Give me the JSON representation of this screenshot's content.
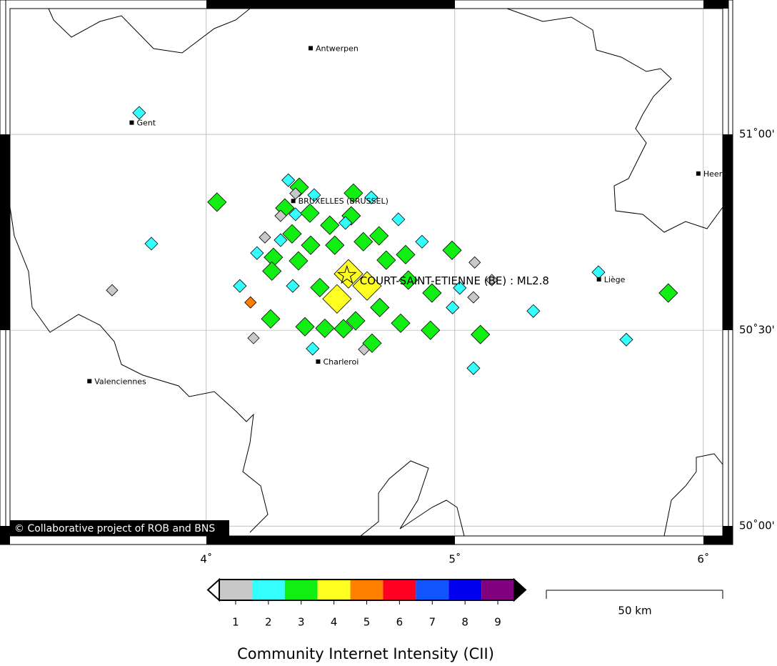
{
  "map": {
    "xlim": [
      3.193,
      6.101
    ],
    "ylim": [
      49.953,
      51.343
    ],
    "xticks": [
      {
        "value": 4,
        "label": "4˚"
      },
      {
        "value": 5,
        "label": "5˚"
      },
      {
        "value": 6,
        "label": "6˚"
      }
    ],
    "yticks": [
      {
        "value": 51,
        "label": "51˚00'"
      },
      {
        "value": 50.5,
        "label": "50˚30'"
      },
      {
        "value": 50,
        "label": "50˚00'"
      }
    ]
  },
  "cities": [
    {
      "name": "Antwerpen",
      "lon": 4.42,
      "lat": 51.22
    },
    {
      "name": "Gent",
      "lon": 3.7,
      "lat": 51.03
    },
    {
      "name": "BRUXELLES (BRUSSEL)",
      "lon": 4.35,
      "lat": 50.83
    },
    {
      "name": "Heer",
      "lon": 5.98,
      "lat": 50.9
    },
    {
      "name": "Liège",
      "lon": 5.58,
      "lat": 50.63
    },
    {
      "name": "Charleroi",
      "lon": 4.45,
      "lat": 50.42
    },
    {
      "name": "Valenciennes",
      "lon": 3.53,
      "lat": 50.37
    }
  ],
  "event": {
    "label": "COURT-SAINT-ETIENNE (BE) : ML2.8",
    "lon": 4.566,
    "lat": 50.64
  },
  "reports": [
    {
      "lon": 3.73,
      "lat": 51.055,
      "cii": 2
    },
    {
      "lon": 3.779,
      "lat": 50.721,
      "cii": 2
    },
    {
      "lon": 3.621,
      "lat": 50.602,
      "cii": 1
    },
    {
      "lon": 4.043,
      "lat": 50.827,
      "cii": 3
    },
    {
      "lon": 4.33,
      "lat": 50.883,
      "cii": 2
    },
    {
      "lon": 4.374,
      "lat": 50.865,
      "cii": 3
    },
    {
      "lon": 4.359,
      "lat": 50.849,
      "cii": 1
    },
    {
      "lon": 4.434,
      "lat": 50.845,
      "cii": 2
    },
    {
      "lon": 4.592,
      "lat": 50.85,
      "cii": 3
    },
    {
      "lon": 4.664,
      "lat": 50.839,
      "cii": 2
    },
    {
      "lon": 4.316,
      "lat": 50.812,
      "cii": 3
    },
    {
      "lon": 4.299,
      "lat": 50.792,
      "cii": 1
    },
    {
      "lon": 4.359,
      "lat": 50.796,
      "cii": 2
    },
    {
      "lon": 4.417,
      "lat": 50.799,
      "cii": 3
    },
    {
      "lon": 4.583,
      "lat": 50.792,
      "cii": 3
    },
    {
      "lon": 4.773,
      "lat": 50.783,
      "cii": 2
    },
    {
      "lon": 4.236,
      "lat": 50.737,
      "cii": 1
    },
    {
      "lon": 4.299,
      "lat": 50.73,
      "cii": 2
    },
    {
      "lon": 4.345,
      "lat": 50.746,
      "cii": 3
    },
    {
      "lon": 4.42,
      "lat": 50.717,
      "cii": 3
    },
    {
      "lon": 4.497,
      "lat": 50.768,
      "cii": 3
    },
    {
      "lon": 4.56,
      "lat": 50.774,
      "cii": 2
    },
    {
      "lon": 4.632,
      "lat": 50.726,
      "cii": 3
    },
    {
      "lon": 4.695,
      "lat": 50.741,
      "cii": 3
    },
    {
      "lon": 4.517,
      "lat": 50.717,
      "cii": 3
    },
    {
      "lon": 4.868,
      "lat": 50.726,
      "cii": 2
    },
    {
      "lon": 4.989,
      "lat": 50.704,
      "cii": 3
    },
    {
      "lon": 4.204,
      "lat": 50.697,
      "cii": 2
    },
    {
      "lon": 4.27,
      "lat": 50.686,
      "cii": 3
    },
    {
      "lon": 4.264,
      "lat": 50.651,
      "cii": 3
    },
    {
      "lon": 4.371,
      "lat": 50.677,
      "cii": 3
    },
    {
      "lon": 4.724,
      "lat": 50.679,
      "cii": 3
    },
    {
      "lon": 4.802,
      "lat": 50.693,
      "cii": 3
    },
    {
      "lon": 5.08,
      "lat": 50.673,
      "cii": 1
    },
    {
      "lon": 4.135,
      "lat": 50.613,
      "cii": 2
    },
    {
      "lon": 4.348,
      "lat": 50.613,
      "cii": 2
    },
    {
      "lon": 4.457,
      "lat": 50.609,
      "cii": 3
    },
    {
      "lon": 4.572,
      "lat": 50.644,
      "cii": 4
    },
    {
      "lon": 4.647,
      "lat": 50.613,
      "cii": 4
    },
    {
      "lon": 4.813,
      "lat": 50.628,
      "cii": 3
    },
    {
      "lon": 4.908,
      "lat": 50.595,
      "cii": 3
    },
    {
      "lon": 5.02,
      "lat": 50.608,
      "cii": 2
    },
    {
      "lon": 5.075,
      "lat": 50.584,
      "cii": 1
    },
    {
      "lon": 5.149,
      "lat": 50.628,
      "cii": 1
    },
    {
      "lon": 4.526,
      "lat": 50.58,
      "cii": 4
    },
    {
      "lon": 4.698,
      "lat": 50.558,
      "cii": 3
    },
    {
      "lon": 4.178,
      "lat": 50.571,
      "cii": 5
    },
    {
      "lon": 4.259,
      "lat": 50.529,
      "cii": 3
    },
    {
      "lon": 4.991,
      "lat": 50.558,
      "cii": 2
    },
    {
      "lon": 5.316,
      "lat": 50.549,
      "cii": 2
    },
    {
      "lon": 5.578,
      "lat": 50.648,
      "cii": 2
    },
    {
      "lon": 5.859,
      "lat": 50.595,
      "cii": 3
    },
    {
      "lon": 4.397,
      "lat": 50.509,
      "cii": 3
    },
    {
      "lon": 4.477,
      "lat": 50.505,
      "cii": 3
    },
    {
      "lon": 4.601,
      "lat": 50.524,
      "cii": 3
    },
    {
      "lon": 4.782,
      "lat": 50.518,
      "cii": 3
    },
    {
      "lon": 4.902,
      "lat": 50.5,
      "cii": 3
    },
    {
      "lon": 4.552,
      "lat": 50.504,
      "cii": 3
    },
    {
      "lon": 4.19,
      "lat": 50.48,
      "cii": 1
    },
    {
      "lon": 4.428,
      "lat": 50.453,
      "cii": 2
    },
    {
      "lon": 4.635,
      "lat": 50.451,
      "cii": 1
    },
    {
      "lon": 4.667,
      "lat": 50.467,
      "cii": 3
    },
    {
      "lon": 5.103,
      "lat": 50.489,
      "cii": 3
    },
    {
      "lon": 5.075,
      "lat": 50.403,
      "cii": 2
    },
    {
      "lon": 5.69,
      "lat": 50.476,
      "cii": 2
    }
  ],
  "legend": {
    "title": "Community Internet Intensity (CII)",
    "ticks": [
      1,
      2,
      3,
      4,
      5,
      6,
      7,
      8,
      9
    ],
    "colors": [
      "#c8c8c8",
      "#33ffff",
      "#11ee11",
      "#ffff22",
      "#ff8000",
      "#ff0022",
      "#1155ff",
      "#0000ee",
      "#800080"
    ]
  },
  "scale_bar": {
    "label": "50 km"
  },
  "credit": "© Collaborative project of ROB and BNS"
}
